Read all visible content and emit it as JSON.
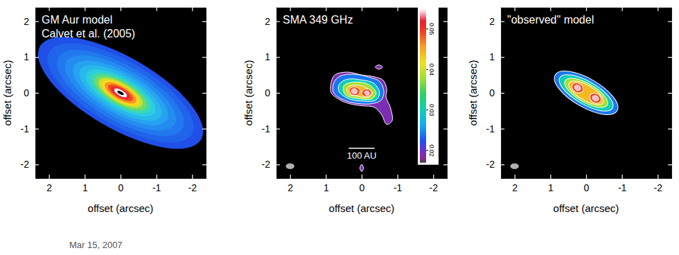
{
  "chart_data": [
    {
      "type": "image",
      "title": [
        "GM Aur model",
        "Calvet et al. (2005)"
      ],
      "x_label": "offset (arcsec)",
      "y_label": "offset (arcsec)",
      "xlim": [
        2.4,
        -2.4
      ],
      "ylim": [
        -2.4,
        2.4
      ],
      "xticks": [
        2,
        1,
        0,
        -1,
        -2
      ],
      "yticks": [
        -2,
        -1,
        0,
        1,
        2
      ],
      "position_angle": 60,
      "ellipses": {
        "x": [
          0,
          0,
          0,
          0,
          0,
          0,
          0,
          0,
          0,
          0,
          0,
          0,
          0,
          0,
          0,
          0
        ],
        "y": [
          0,
          0,
          0,
          0,
          0,
          0,
          0,
          0,
          0,
          0,
          0,
          0,
          0,
          0,
          0,
          0
        ],
        "major": [
          2.6,
          2.3,
          2.0,
          1.75,
          1.5,
          1.3,
          1.1,
          0.95,
          0.82,
          0.7,
          0.6,
          0.5,
          0.4,
          0.3,
          0.2,
          0.1
        ],
        "minor": [
          1.0,
          0.89,
          0.77,
          0.67,
          0.58,
          0.5,
          0.42,
          0.37,
          0.32,
          0.27,
          0.23,
          0.19,
          0.15,
          0.12,
          0.08,
          0.04
        ]
      },
      "colors": [
        "#2050e8",
        "#2064ec",
        "#2278ee",
        "#248cf0",
        "#26a2f0",
        "#28b8ec",
        "#2ccce0",
        "#3cd8b0",
        "#6edc68",
        "#c8e030",
        "#f8d820",
        "#f89820",
        "#f05020",
        "#e82838",
        "#ffffff",
        "#000000"
      ]
    },
    {
      "type": "contour",
      "title": [
        "SMA 349 GHz"
      ],
      "x_label": "offset (arcsec)",
      "y_label": "offset (arcsec)",
      "xlim": [
        2.4,
        -2.4
      ],
      "ylim": [
        -2.4,
        2.4
      ],
      "xticks": [
        2,
        1,
        0,
        -1,
        -2
      ],
      "yticks": [
        -2,
        -1,
        0,
        1,
        2
      ],
      "contours": [
        {
          "level": 0.019,
          "x": [
            0.85,
            0.75,
            0.4,
            0.0,
            -0.35,
            -0.6,
            -0.7,
            -0.68,
            -0.8,
            -0.85,
            -0.7,
            -0.55,
            -0.35,
            0.0,
            0.35,
            0.6,
            0.85
          ],
          "y": [
            0.3,
            0.5,
            0.58,
            0.5,
            0.45,
            0.35,
            0.1,
            -0.12,
            -0.4,
            -0.78,
            -0.88,
            -0.6,
            -0.4,
            -0.36,
            -0.3,
            -0.2,
            0.0
          ]
        },
        {
          "level": 0.024,
          "x": [
            0.78,
            0.6,
            0.2,
            -0.2,
            -0.5,
            -0.62,
            -0.55,
            -0.3,
            0.1,
            0.5,
            0.78
          ],
          "y": [
            0.28,
            0.47,
            0.52,
            0.44,
            0.32,
            0.05,
            -0.2,
            -0.3,
            -0.3,
            -0.2,
            0.0
          ]
        },
        {
          "level": 0.03,
          "x": [
            0.62,
            0.4,
            0.0,
            -0.35,
            -0.5,
            -0.4,
            0.0,
            0.4,
            0.64
          ],
          "y": [
            0.25,
            0.38,
            0.36,
            0.26,
            0.0,
            -0.2,
            -0.23,
            -0.15,
            0.05
          ]
        },
        {
          "level": 0.038,
          "x": [
            0.5,
            0.2,
            -0.2,
            -0.4,
            -0.3,
            0.1,
            0.46
          ],
          "y": [
            0.2,
            0.3,
            0.23,
            0.0,
            -0.16,
            -0.16,
            -0.05
          ]
        },
        {
          "level": 0.044,
          "x": [
            0.4,
            0.2,
            -0.1,
            -0.3,
            -0.2,
            0.1,
            0.38
          ],
          "y": [
            0.15,
            0.22,
            0.16,
            0.0,
            -0.12,
            -0.1,
            -0.02
          ]
        },
        {
          "level": 0.049,
          "x": [
            0.35,
            0.2,
            0.05,
            0.1,
            0.28
          ],
          "y": [
            0.1,
            0.17,
            0.08,
            -0.06,
            -0.05
          ]
        },
        {
          "level": 0.049,
          "x": [
            -0.05,
            -0.2,
            -0.28,
            -0.15,
            0.0
          ],
          "y": [
            0.08,
            0.1,
            -0.02,
            -0.1,
            -0.05
          ]
        },
        {
          "level": 0.054,
          "x": [
            0.3,
            0.2,
            0.12,
            0.2
          ],
          "y": [
            0.05,
            0.12,
            0.03,
            -0.03
          ]
        },
        {
          "level": 0.054,
          "x": [
            -0.08,
            -0.17,
            -0.22,
            -0.13
          ],
          "y": [
            0.02,
            0.05,
            -0.03,
            -0.06
          ]
        },
        {
          "level": 0.019,
          "x": [
            -0.38,
            -0.48,
            -0.58,
            -0.48
          ],
          "y": [
            0.72,
            0.78,
            0.72,
            0.66
          ]
        },
        {
          "level": 0.019,
          "x": [
            0.05,
            0.0,
            -0.05,
            0.0
          ],
          "y": [
            -2.1,
            -2.0,
            -2.1,
            -2.2
          ]
        }
      ],
      "colorbar": {
        "range": [
          0.017,
          0.055
        ],
        "ticks": [
          0.02,
          0.03,
          0.04,
          0.05
        ]
      },
      "scale_bar": {
        "label": "100 AU",
        "x": [
          0.36,
          -0.36
        ],
        "y": -1.55
      },
      "beam": {
        "x": 2.0,
        "y": -2.05,
        "major": 0.12,
        "minor": 0.08
      }
    },
    {
      "type": "contour",
      "title": [
        "\"observed\" model"
      ],
      "x_label": "offset (arcsec)",
      "y_label": "offset (arcsec)",
      "xlim": [
        2.4,
        -2.4
      ],
      "ylim": [
        -2.4,
        2.4
      ],
      "xticks": [
        2,
        1,
        0,
        -1,
        -2
      ],
      "yticks": [
        -2,
        -1,
        0,
        1,
        2
      ],
      "position_angle": 60,
      "ellipses": {
        "x": [
          0,
          0,
          0,
          0,
          0.24,
          -0.26,
          0.24,
          -0.26
        ],
        "y": [
          0,
          0,
          0,
          0,
          0.14,
          -0.15,
          0.14,
          -0.15
        ],
        "major": [
          1.0,
          0.85,
          0.68,
          0.55,
          0.17,
          0.17,
          0.09,
          0.09
        ],
        "minor": [
          0.4,
          0.32,
          0.26,
          0.21,
          0.13,
          0.13,
          0.07,
          0.07
        ],
        "level": [
          0.024,
          0.03,
          0.038,
          0.044,
          0.049,
          0.049,
          0.054,
          0.054
        ]
      },
      "beam": {
        "x": 2.0,
        "y": -2.05,
        "major": 0.12,
        "minor": 0.08
      }
    }
  ],
  "footer": "Mar 15, 2007"
}
